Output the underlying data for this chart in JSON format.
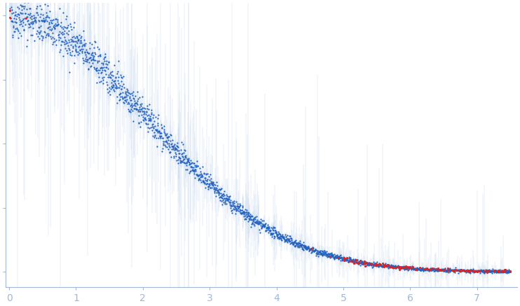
{
  "title": "",
  "xlabel": "",
  "ylabel": "",
  "xlim": [
    -0.05,
    7.6
  ],
  "bg_color": "#ffffff",
  "dot_color_blue": "#2060c0",
  "dot_color_red": "#dd2222",
  "error_color": "#b8cfe8",
  "axis_color": "#a0b8d8",
  "tick_color": "#a0b8d8",
  "xticks": [
    0,
    1,
    2,
    3,
    4,
    5,
    6,
    7
  ],
  "xtick_labels": [
    "0",
    "1",
    "2",
    "3",
    "4",
    "5",
    "6",
    "7"
  ],
  "seed": 42,
  "n_main": 2200
}
